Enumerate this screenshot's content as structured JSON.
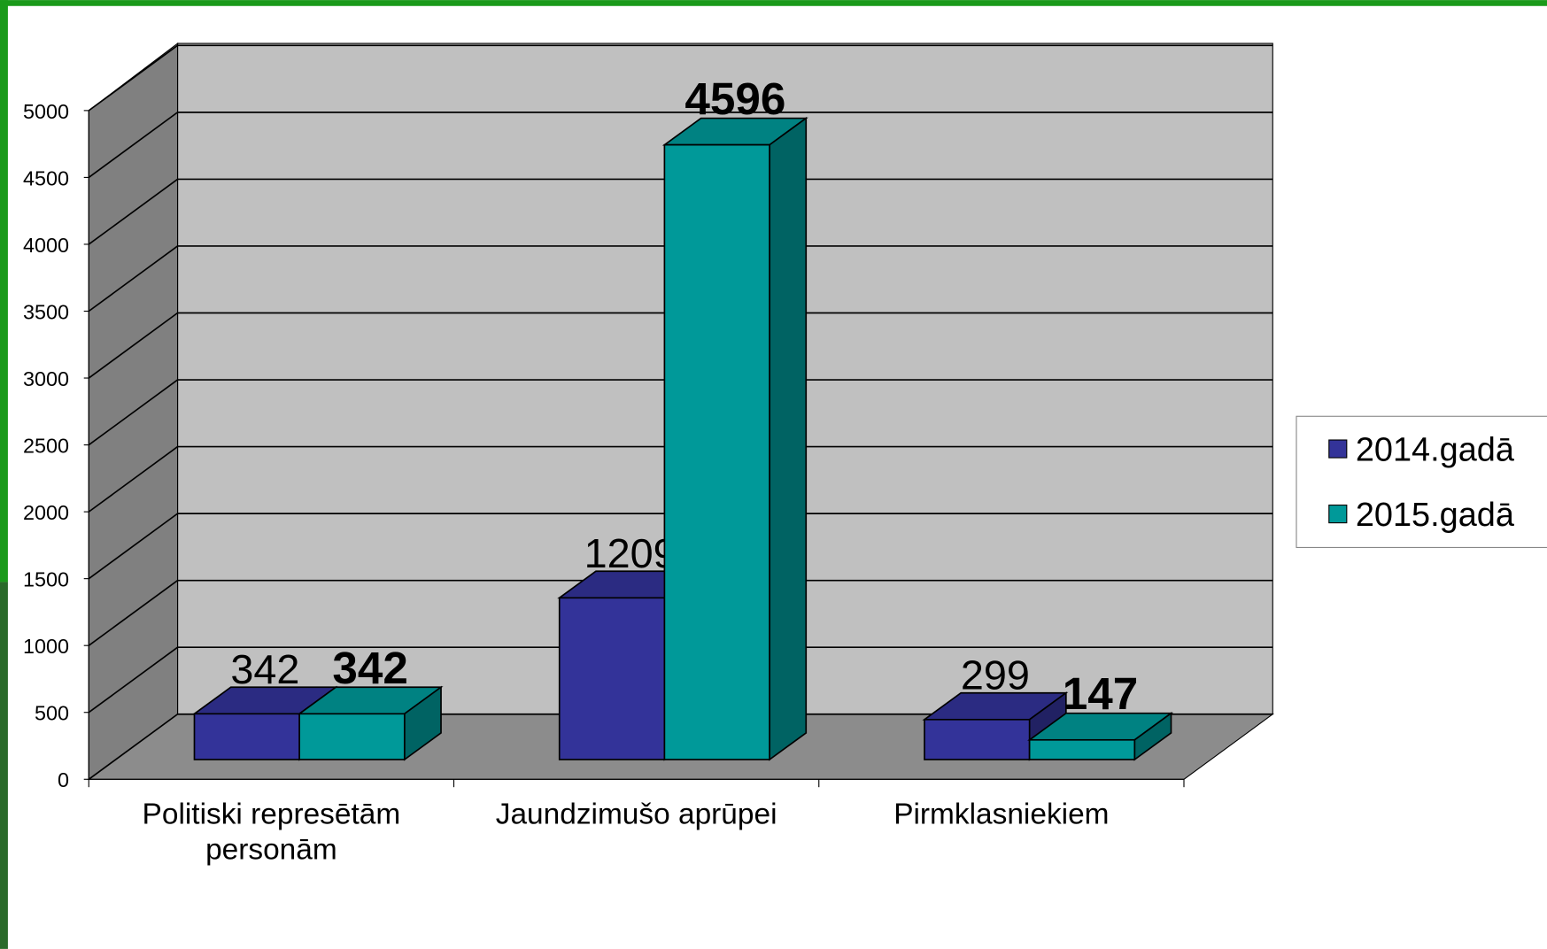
{
  "chart_data": {
    "type": "bar3d",
    "categories": [
      "Politiski represētām personām",
      "Jaundzimušo aprūpei",
      "Pirmklasniekiem"
    ],
    "series": [
      {
        "name": "2014.gadā",
        "color": "#333399",
        "values": [
          342,
          1209,
          299
        ],
        "bold_labels": false
      },
      {
        "name": "2015.gadā",
        "color": "#009999",
        "values": [
          342,
          4596,
          147
        ],
        "bold_labels": true
      }
    ],
    "ylim": [
      0,
      5000
    ],
    "yticks": [
      0,
      500,
      1000,
      1500,
      2000,
      2500,
      3000,
      3500,
      4000,
      4500,
      5000
    ],
    "grid": true,
    "legend": "right"
  }
}
